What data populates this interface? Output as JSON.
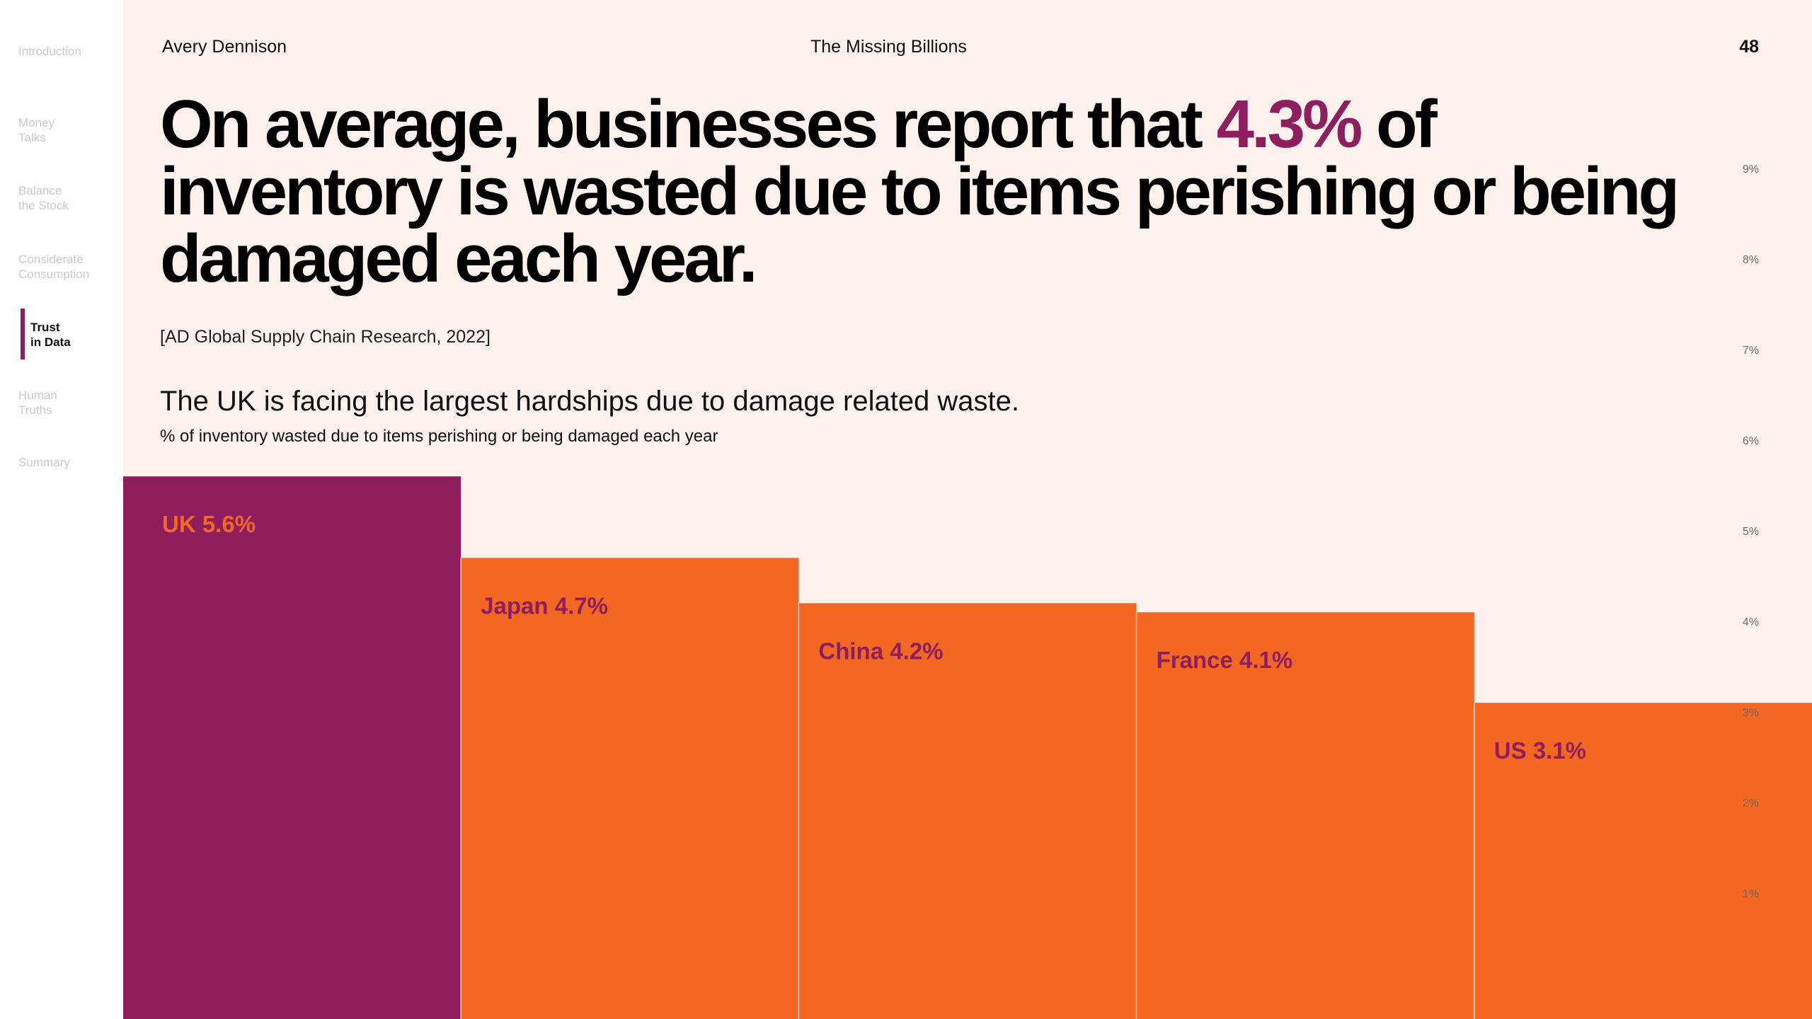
{
  "sidebar": {
    "items": [
      {
        "label": "Introduction",
        "active": false
      },
      {
        "label": "Money\nTalks",
        "active": false
      },
      {
        "label": "Balance\nthe Stock",
        "active": false
      },
      {
        "label": "Considerate\nConsumption",
        "active": false
      },
      {
        "label": "Trust\nin Data",
        "active": true
      },
      {
        "label": "Human\nTruths",
        "active": false
      },
      {
        "label": "Summary",
        "active": false
      }
    ]
  },
  "header": {
    "brand": "Avery Dennison",
    "title": "The Missing Billions",
    "page": "48"
  },
  "headline": {
    "before": "On average, businesses report that ",
    "highlight": "4.3%",
    "after": " of inventory is wasted due to items perishing or being damaged each year."
  },
  "citation": "[AD Global Supply Chain Research, 2022]",
  "subtitle": "The UK is facing the largest hardships due to damage related waste.",
  "caption": "% of inventory wasted due to items perishing or being damaged each year",
  "colors": {
    "accent": "#8e1e5e",
    "bar": "#f26722",
    "background": "#fcf2ed"
  },
  "chart_data": {
    "type": "bar",
    "categories": [
      "UK",
      "Japan",
      "China",
      "France",
      "US"
    ],
    "values": [
      5.6,
      4.7,
      4.2,
      4.1,
      3.1
    ],
    "labels": [
      "UK 5.6%",
      "Japan 4.7%",
      "China 4.2%",
      "France 4.1%",
      "US 3.1%"
    ],
    "highlight": "UK",
    "yticks": [
      "1%",
      "2%",
      "3%",
      "4%",
      "5%",
      "6%",
      "7%",
      "8%",
      "9%"
    ],
    "ylim": [
      0,
      9.9
    ],
    "grid": false,
    "legend": "none"
  }
}
